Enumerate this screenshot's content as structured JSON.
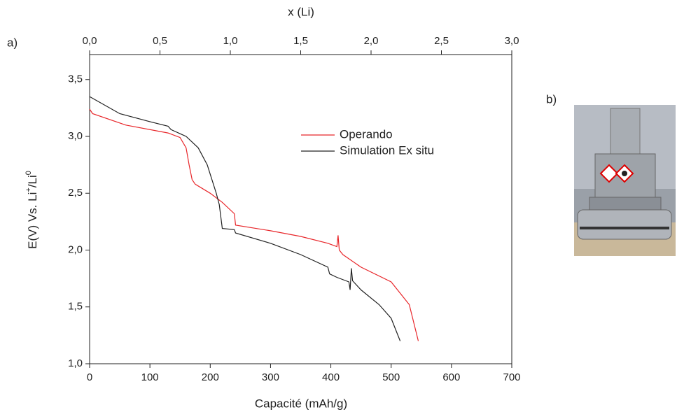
{
  "chart_data": {
    "type": "line",
    "panel_a": "a)",
    "panel_b": "b)",
    "xlabel": "Capacité (mAh/g)",
    "ylabel": [
      "E(V) Vs. Li",
      "+",
      "/Li",
      "0"
    ],
    "x2label": "x (Li)",
    "xlim": [
      0,
      700
    ],
    "xticks": [
      0,
      100,
      200,
      300,
      400,
      500,
      600,
      700
    ],
    "x2lim": [
      0,
      3
    ],
    "x2ticks": [
      {
        "value": 0,
        "label": "0,0"
      },
      {
        "value": 0.5,
        "label": "0,5"
      },
      {
        "value": 1,
        "label": "1,0"
      },
      {
        "value": 1.5,
        "label": "1,5"
      },
      {
        "value": 2,
        "label": "2,0"
      },
      {
        "value": 2.5,
        "label": "2,5"
      },
      {
        "value": 3,
        "label": "3,0"
      }
    ],
    "ylim": [
      1.0,
      3.72
    ],
    "yticks": [
      {
        "value": 1,
        "label": "1,0"
      },
      {
        "value": 1.5,
        "label": "1,5"
      },
      {
        "value": 2,
        "label": "2,0"
      },
      {
        "value": 2.5,
        "label": "2,5"
      },
      {
        "value": 3,
        "label": "3,0"
      },
      {
        "value": 3.5,
        "label": "3,5"
      }
    ],
    "series": [
      {
        "name": "Operando",
        "color": "#e8262a",
        "x": [
          0,
          5,
          60,
          130,
          150,
          160,
          165,
          170,
          175,
          200,
          220,
          240,
          242,
          300,
          350,
          395,
          410,
          412,
          414,
          420,
          450,
          500,
          530,
          545
        ],
        "values": [
          3.24,
          3.2,
          3.1,
          3.03,
          2.99,
          2.9,
          2.75,
          2.62,
          2.58,
          2.5,
          2.42,
          2.32,
          2.22,
          2.17,
          2.12,
          2.06,
          2.03,
          2.13,
          2.0,
          1.96,
          1.85,
          1.72,
          1.52,
          1.2
        ]
      },
      {
        "name": "Simulation Ex situ",
        "color": "#222222",
        "x": [
          0,
          50,
          100,
          130,
          135,
          160,
          180,
          195,
          210,
          215,
          220,
          240,
          242,
          300,
          350,
          395,
          398,
          410,
          430,
          432,
          434,
          436,
          450,
          480,
          500,
          515
        ],
        "values": [
          3.35,
          3.2,
          3.13,
          3.09,
          3.06,
          3.0,
          2.9,
          2.75,
          2.5,
          2.4,
          2.19,
          2.18,
          2.15,
          2.06,
          1.96,
          1.85,
          1.79,
          1.76,
          1.72,
          1.65,
          1.84,
          1.73,
          1.65,
          1.52,
          1.4,
          1.2
        ]
      }
    ]
  }
}
